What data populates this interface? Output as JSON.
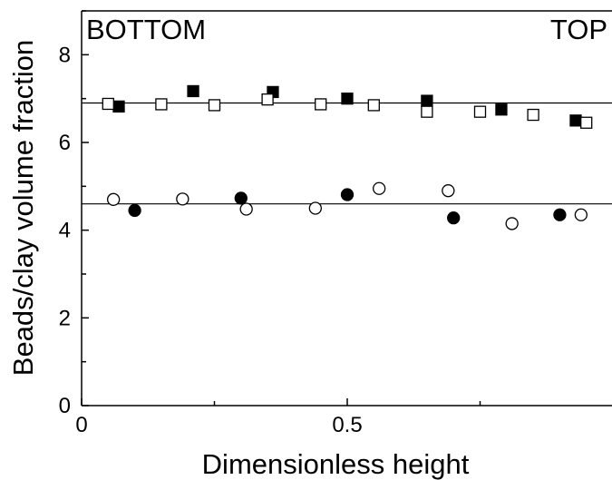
{
  "chart_data": {
    "type": "scatter",
    "xlabel": "Dimensionless height",
    "ylabel": "Beads/clay volume fraction",
    "xlim": [
      0,
      1
    ],
    "ylim": [
      0,
      9
    ],
    "x_ticks": [
      {
        "value": 0,
        "label": "0"
      },
      {
        "value": 0.5,
        "label": "0.5"
      }
    ],
    "y_ticks": [
      {
        "value": 0,
        "label": "0"
      },
      {
        "value": 2,
        "label": "2"
      },
      {
        "value": 4,
        "label": "4"
      },
      {
        "value": 6,
        "label": "6"
      },
      {
        "value": 8,
        "label": "8"
      }
    ],
    "annotations": {
      "left": "BOTTOM",
      "right": "TOP"
    },
    "grid": false,
    "series": [
      {
        "marker": "square-filled",
        "x": [
          0.07,
          0.21,
          0.36,
          0.5,
          0.65,
          0.79,
          0.93
        ],
        "y": [
          6.82,
          7.17,
          7.15,
          7.0,
          6.95,
          6.75,
          6.5
        ]
      },
      {
        "marker": "square-open",
        "x": [
          0.05,
          0.15,
          0.25,
          0.35,
          0.45,
          0.55,
          0.65,
          0.75,
          0.85,
          0.95
        ],
        "y": [
          6.88,
          6.87,
          6.85,
          6.98,
          6.87,
          6.85,
          6.7,
          6.7,
          6.63,
          6.45
        ]
      },
      {
        "marker": "circle-filled",
        "x": [
          0.1,
          0.3,
          0.5,
          0.7,
          0.9
        ],
        "y": [
          4.45,
          4.73,
          4.81,
          4.28,
          4.35
        ]
      },
      {
        "marker": "circle-open",
        "x": [
          0.06,
          0.19,
          0.31,
          0.44,
          0.56,
          0.69,
          0.81,
          0.94
        ],
        "y": [
          4.7,
          4.71,
          4.48,
          4.5,
          4.95,
          4.9,
          4.15,
          4.35
        ]
      }
    ],
    "reference_lines": [
      {
        "y": 6.9
      },
      {
        "y": 4.6
      }
    ]
  }
}
